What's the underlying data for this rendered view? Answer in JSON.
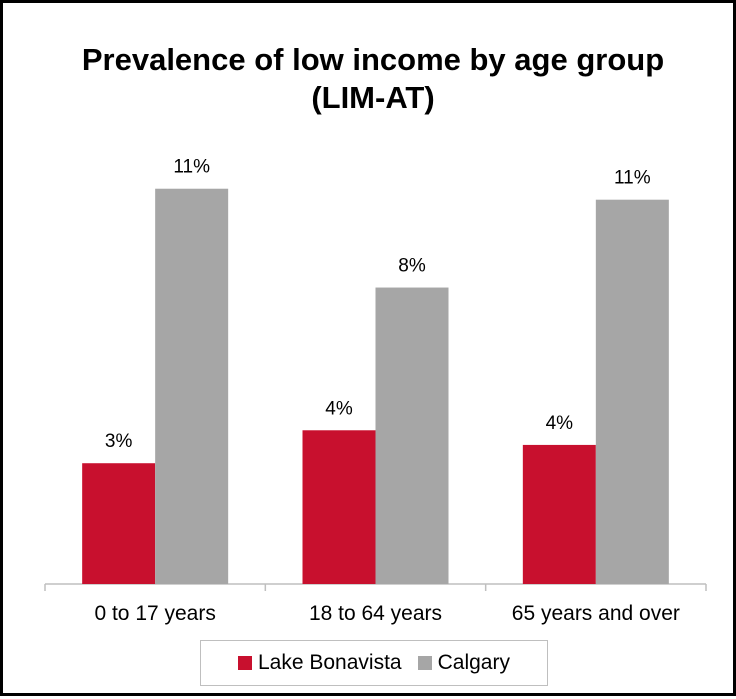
{
  "chart_data": {
    "type": "bar",
    "title": "Prevalence of low income by age group (LIM-AT)",
    "xlabel": "",
    "ylabel": "",
    "categories": [
      "0 to 17 years",
      "18 to 64 years",
      "65 years and over"
    ],
    "series": [
      {
        "name": "Lake Bonavista",
        "color": "#c8102e",
        "values": [
          3.3,
          4.2,
          3.8
        ],
        "labels": [
          "3%",
          "4%",
          "4%"
        ]
      },
      {
        "name": "Calgary",
        "color": "#a6a6a6",
        "values": [
          10.8,
          8.1,
          10.5
        ],
        "labels": [
          "11%",
          "8%",
          "11%"
        ]
      }
    ],
    "ylim": [
      0,
      12
    ],
    "grid": false,
    "legend_position": "bottom"
  }
}
